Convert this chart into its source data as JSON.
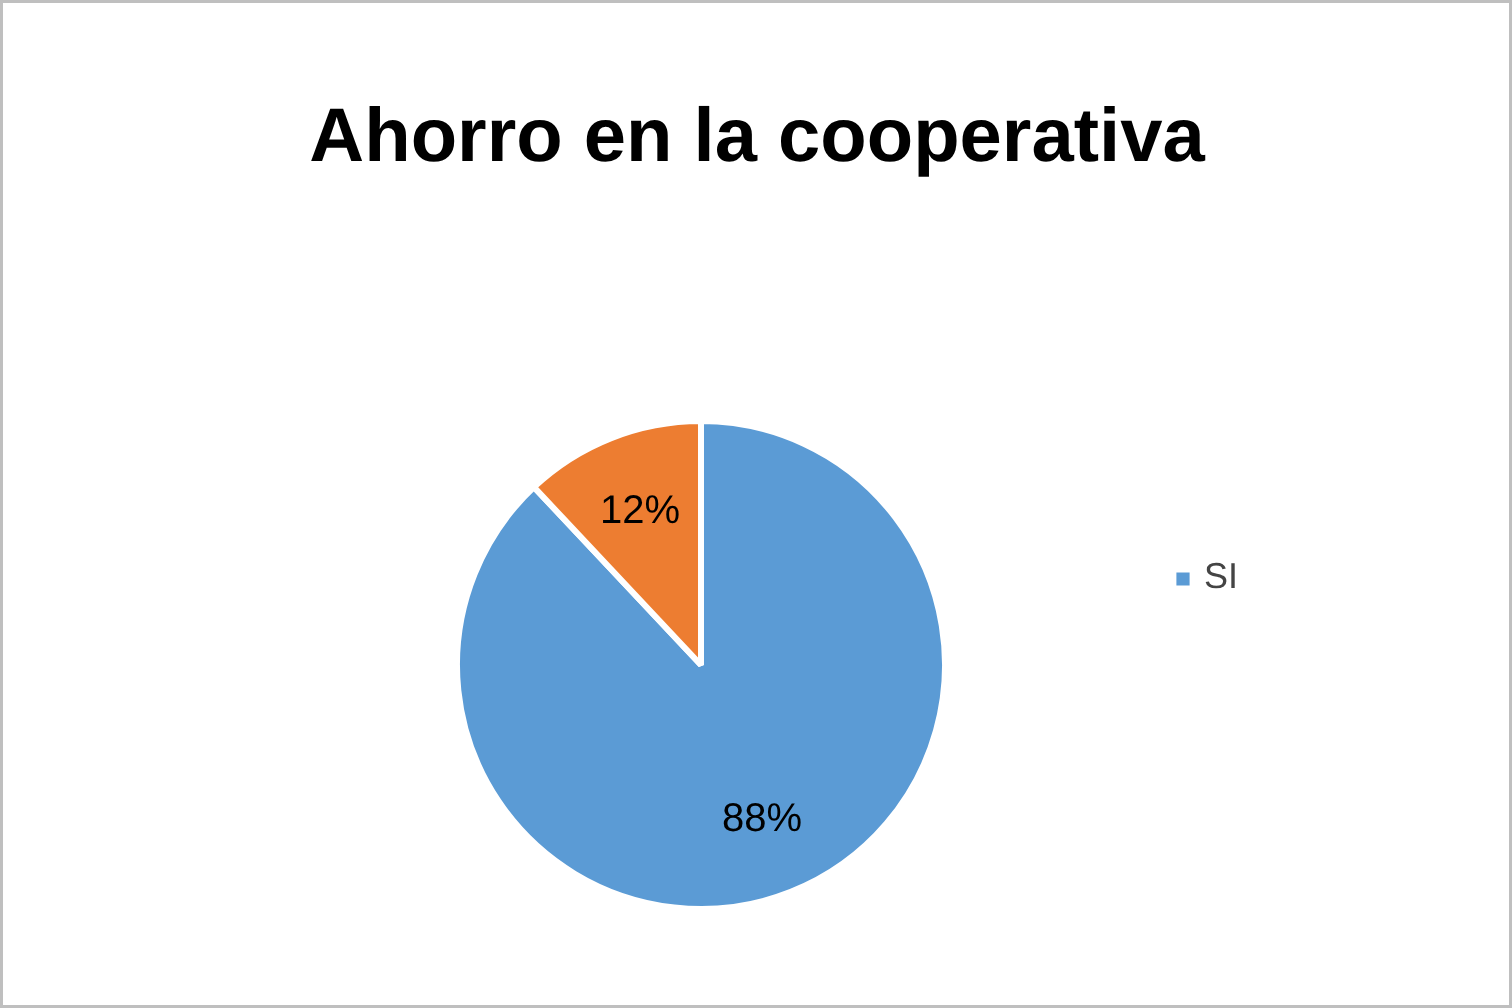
{
  "chart_data": {
    "type": "pie",
    "title": "Ahorro en la cooperativa",
    "categories": [
      "SI",
      null
    ],
    "values": [
      88,
      12
    ],
    "colors": [
      "#5b9bd5",
      "#ed7d31"
    ],
    "value_labels": [
      "88%",
      "12%"
    ],
    "legend": "right"
  }
}
